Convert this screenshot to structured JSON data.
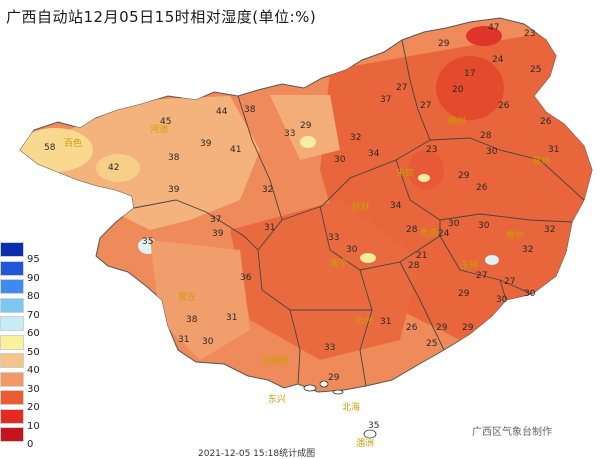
{
  "title": "广西自动站12月05日15时相对湿度(单位:%)",
  "credit": "广西区气象台制作",
  "timestamp": "2021-12-05 15:18统计成图",
  "legend": [
    {
      "label": "95",
      "color": "#0a2fae"
    },
    {
      "label": "90",
      "color": "#1f57d8"
    },
    {
      "label": "80",
      "color": "#3d8bee"
    },
    {
      "label": "70",
      "color": "#7cc8f3"
    },
    {
      "label": "60",
      "color": "#c6ecf8"
    },
    {
      "label": "50",
      "color": "#fbf19a"
    },
    {
      "label": "40",
      "color": "#f6c487"
    },
    {
      "label": "30",
      "color": "#f29a66"
    },
    {
      "label": "20",
      "color": "#ea5d34"
    },
    {
      "label": "10",
      "color": "#e52a22"
    },
    {
      "label": "0",
      "color": "#c5141c"
    }
  ],
  "station_values": [
    "47",
    "23",
    "29",
    "24",
    "25",
    "17",
    "20",
    "27",
    "27",
    "26",
    "28",
    "26",
    "30",
    "31",
    "44",
    "38",
    "45",
    "33",
    "29",
    "37",
    "32",
    "58",
    "39",
    "41",
    "38",
    "34",
    "30",
    "23",
    "42",
    "32",
    "39",
    "37",
    "39",
    "31",
    "36",
    "21",
    "26",
    "29",
    "30",
    "24",
    "28",
    "32",
    "35",
    "33",
    "30",
    "28",
    "30",
    "34",
    "32",
    "27",
    "29",
    "30",
    "31",
    "29",
    "38",
    "31",
    "31",
    "30",
    "26",
    "29",
    "27",
    "30",
    "33",
    "29",
    "25",
    "35"
  ],
  "cities": [
    "百色",
    "河池",
    "柳州",
    "桂林",
    "贺州",
    "梧州",
    "南宁",
    "玉林",
    "钦州",
    "防城港",
    "北海",
    "崇左",
    "来宾",
    "贵港",
    "东兴",
    "涠洲"
  ]
}
